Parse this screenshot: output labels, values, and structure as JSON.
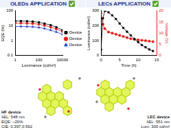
{
  "chart_data": [
    {
      "type": "line",
      "title": "OLEDs APPLICATION",
      "x_label": "Luminance (cd/m²)",
      "y_label": "EQE (%)",
      "log": true,
      "grid": false,
      "legend": "right",
      "x": [
        1,
        3,
        10,
        30,
        100,
        300,
        1000,
        3000,
        10000
      ],
      "xlim": [
        1,
        10000
      ],
      "xticks": [
        1,
        100,
        10000
      ],
      "ylim": [
        0.1,
        100
      ],
      "yticks": [
        0.1,
        1,
        10,
        100
      ],
      "series": [
        {
          "name": "Device I",
          "color": "#000000",
          "marker": "square",
          "values": [
            21,
            20.5,
            20,
            19,
            17,
            14,
            11,
            8,
            5
          ]
        },
        {
          "name": "Device II",
          "color": "#e0201b",
          "marker": "circle",
          "values": [
            15,
            15,
            14.5,
            14,
            12.5,
            10.5,
            8,
            6,
            4
          ]
        },
        {
          "name": "Device III",
          "color": "#1f3fcf",
          "marker": "triangle",
          "values": [
            9,
            9,
            8.8,
            8.4,
            7.6,
            6.5,
            5,
            3.8,
            2.6
          ]
        }
      ],
      "annotations": [
        "HF device",
        "λEL: 548 nm",
        "EQE: ~20%",
        "CIE: 0.397,0.592"
      ]
    },
    {
      "type": "line",
      "title": "LECs APPLICATION",
      "x_label": "Time (h)",
      "y_label": "Luminance (cd/m²)",
      "y2_label": "Voltage (V)",
      "grid": false,
      "x": [
        0,
        0.5,
        1,
        2,
        3,
        4,
        5,
        6,
        7,
        8,
        9,
        10,
        11,
        12,
        13,
        14
      ],
      "xlim": [
        0,
        15
      ],
      "xticks": [
        0,
        5,
        10,
        15
      ],
      "ylim": [
        0,
        300
      ],
      "yticks": [
        0,
        100,
        200,
        300
      ],
      "y2lim": [
        0,
        20
      ],
      "y2ticks": [
        0,
        5,
        10,
        15,
        20
      ],
      "series": [
        {
          "name": "Luminance",
          "color": "#000000",
          "marker": "square",
          "values": [
            40,
            250,
            300,
            290,
            270,
            245,
            215,
            185,
            160,
            135,
            110,
            90,
            70,
            55,
            40,
            30
          ]
        },
        {
          "name": "Voltage",
          "color": "#e0201b",
          "marker": "circle",
          "axis": "y2",
          "values": [
            19,
            14,
            12,
            10.5,
            10,
            9.5,
            9,
            8.5,
            8,
            7.5,
            7.2,
            7,
            6.8,
            6.6,
            6.4,
            6.2
          ]
        }
      ],
      "annotations": [
        "LEC device",
        "λEL: 551 nm",
        "Lum: 300 cd/m²"
      ]
    }
  ]
}
